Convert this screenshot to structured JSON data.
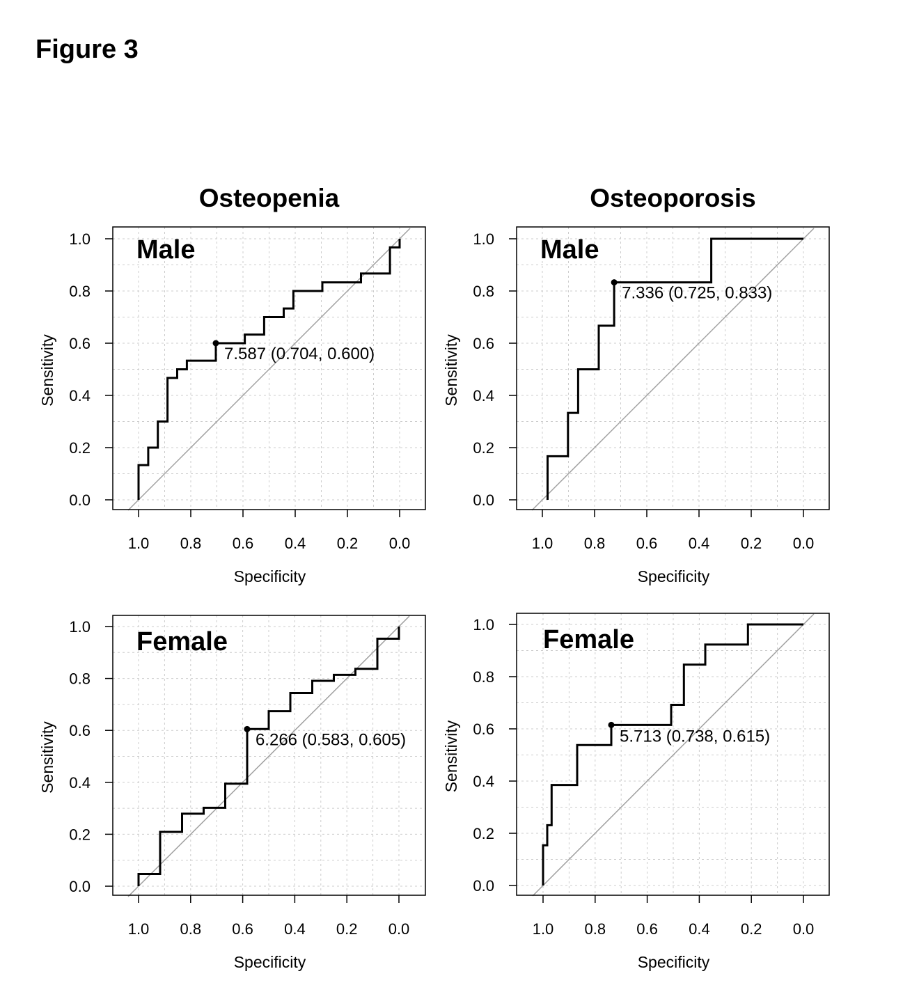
{
  "figure": {
    "title": "Figure 3",
    "column_titles": [
      "Osteopenia",
      "Osteoporosis"
    ]
  },
  "colors": {
    "roc_curve": "#000000",
    "diagonal": "#a0a0a0",
    "grid": "#cccccc",
    "frame": "#000000"
  },
  "chart_data": [
    {
      "type": "line",
      "column": "Osteopenia",
      "panel_label": "Male",
      "xlabel": "Specificity",
      "ylabel": "Sensitivity",
      "xlim": [
        1.0,
        0.0
      ],
      "ylim": [
        0.0,
        1.0
      ],
      "x_reversed": true,
      "grid": true,
      "x_ticks": [
        "1.0",
        "0.8",
        "0.6",
        "0.4",
        "0.2",
        "0.0"
      ],
      "y_ticks": [
        "0.0",
        "0.2",
        "0.4",
        "0.6",
        "0.8",
        "1.0"
      ],
      "reference_line": "diagonal",
      "curve": {
        "specificity": [
          1.0,
          1.0,
          0.963,
          0.963,
          0.926,
          0.926,
          0.889,
          0.889,
          0.852,
          0.852,
          0.815,
          0.815,
          0.704,
          0.704,
          0.593,
          0.593,
          0.519,
          0.519,
          0.444,
          0.444,
          0.407,
          0.407,
          0.296,
          0.296,
          0.148,
          0.148,
          0.037,
          0.037,
          0.0,
          0.0
        ],
        "sensitivity": [
          0.0,
          0.133,
          0.133,
          0.2,
          0.2,
          0.3,
          0.3,
          0.467,
          0.467,
          0.5,
          0.5,
          0.533,
          0.533,
          0.6,
          0.6,
          0.633,
          0.633,
          0.7,
          0.7,
          0.733,
          0.733,
          0.8,
          0.8,
          0.833,
          0.833,
          0.867,
          0.867,
          0.967,
          0.967,
          1.0
        ]
      },
      "threshold": {
        "specificity": 0.704,
        "sensitivity": 0.6,
        "label": "7.587 (0.704, 0.600)"
      }
    },
    {
      "type": "line",
      "column": "Osteoporosis",
      "panel_label": "Male",
      "xlabel": "Specificity",
      "ylabel": "Sensitivity",
      "xlim": [
        1.0,
        0.0
      ],
      "ylim": [
        0.0,
        1.0
      ],
      "x_reversed": true,
      "grid": true,
      "x_ticks": [
        "1.0",
        "0.8",
        "0.6",
        "0.4",
        "0.2",
        "0.0"
      ],
      "y_ticks": [
        "0.0",
        "0.2",
        "0.4",
        "0.6",
        "0.8",
        "1.0"
      ],
      "reference_line": "diagonal",
      "curve": {
        "specificity": [
          0.98,
          0.98,
          0.902,
          0.902,
          0.863,
          0.863,
          0.784,
          0.784,
          0.725,
          0.725,
          0.353,
          0.353,
          0.0
        ],
        "sensitivity": [
          0.0,
          0.167,
          0.167,
          0.333,
          0.333,
          0.5,
          0.5,
          0.667,
          0.667,
          0.833,
          0.833,
          1.0,
          1.0
        ]
      },
      "threshold": {
        "specificity": 0.725,
        "sensitivity": 0.833,
        "label": "7.336 (0.725, 0.833)"
      }
    },
    {
      "type": "line",
      "column": "Osteopenia",
      "panel_label": "Female",
      "xlabel": "Specificity",
      "ylabel": "Sensitivity",
      "xlim": [
        1.0,
        0.0
      ],
      "ylim": [
        0.0,
        1.0
      ],
      "x_reversed": true,
      "grid": true,
      "x_ticks": [
        "1.0",
        "0.8",
        "0.6",
        "0.4",
        "0.2",
        "0.0"
      ],
      "y_ticks": [
        "0.0",
        "0.2",
        "0.4",
        "0.6",
        "0.8",
        "1.0"
      ],
      "reference_line": "diagonal",
      "curve": {
        "specificity": [
          1.0,
          1.0,
          0.917,
          0.917,
          0.833,
          0.833,
          0.75,
          0.75,
          0.667,
          0.667,
          0.583,
          0.583,
          0.5,
          0.5,
          0.417,
          0.417,
          0.333,
          0.333,
          0.25,
          0.25,
          0.167,
          0.167,
          0.083,
          0.083,
          0.0,
          0.0
        ],
        "sensitivity": [
          0.0,
          0.047,
          0.047,
          0.209,
          0.209,
          0.279,
          0.279,
          0.302,
          0.302,
          0.395,
          0.395,
          0.605,
          0.605,
          0.674,
          0.674,
          0.744,
          0.744,
          0.791,
          0.791,
          0.814,
          0.814,
          0.837,
          0.837,
          0.953,
          0.953,
          1.0
        ]
      },
      "threshold": {
        "specificity": 0.583,
        "sensitivity": 0.605,
        "label": "6.266 (0.583, 0.605)"
      }
    },
    {
      "type": "line",
      "column": "Osteoporosis",
      "panel_label": "Female",
      "xlabel": "Specificity",
      "ylabel": "Sensitivity",
      "xlim": [
        1.0,
        0.0
      ],
      "ylim": [
        0.0,
        1.0
      ],
      "x_reversed": true,
      "grid": true,
      "x_ticks": [
        "1.0",
        "0.8",
        "0.6",
        "0.4",
        "0.2",
        "0.0"
      ],
      "y_ticks": [
        "0.0",
        "0.2",
        "0.4",
        "0.6",
        "0.8",
        "1.0"
      ],
      "reference_line": "diagonal",
      "curve": {
        "specificity": [
          1.0,
          1.0,
          0.984,
          0.984,
          0.967,
          0.967,
          0.951,
          0.951,
          0.869,
          0.869,
          0.738,
          0.738,
          0.508,
          0.508,
          0.459,
          0.459,
          0.377,
          0.377,
          0.213,
          0.213,
          0.0
        ],
        "sensitivity": [
          0.0,
          0.154,
          0.154,
          0.231,
          0.231,
          0.385,
          0.385,
          0.385,
          0.385,
          0.538,
          0.538,
          0.615,
          0.615,
          0.692,
          0.692,
          0.846,
          0.846,
          0.923,
          0.923,
          1.0,
          1.0
        ]
      },
      "threshold": {
        "specificity": 0.738,
        "sensitivity": 0.615,
        "label": "5.713 (0.738, 0.615)"
      }
    }
  ]
}
